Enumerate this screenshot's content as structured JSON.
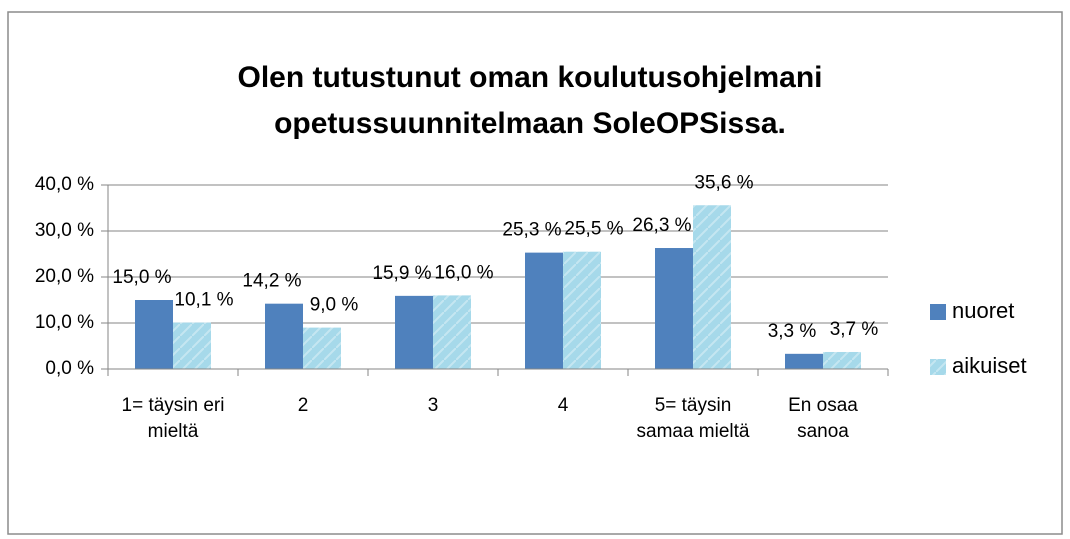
{
  "chart_data": {
    "type": "bar",
    "title": "Olen tutustunut oman koulutusohjelmani opetussuunnitelmaan SoleOPSissa.",
    "categories": [
      "1= täysin eri mieltä",
      "2",
      "3",
      "4",
      "5= täysin samaa mieltä",
      "En osaa sanoa"
    ],
    "series": [
      {
        "name": "nuoret",
        "color": "#4f81bd",
        "values": [
          15.0,
          14.2,
          15.9,
          25.3,
          26.3,
          3.3
        ],
        "value_labels": [
          "15,0 %",
          "14,2 %",
          "15,9 %",
          "25,3 %",
          "26,3 %",
          "3,3 %"
        ]
      },
      {
        "name": "aikuiset",
        "color": "#a6d9ea",
        "values": [
          10.1,
          9.0,
          16.0,
          25.5,
          35.6,
          3.7
        ],
        "value_labels": [
          "10,1 %",
          "9,0 %",
          "16,0 %",
          "25,5 %",
          "35,6 %",
          "3,7 %"
        ]
      }
    ],
    "ylim": [
      0,
      40
    ],
    "yticks": [
      {
        "value": 0,
        "label": "0,0 %"
      },
      {
        "value": 10,
        "label": "10,0 %"
      },
      {
        "value": 20,
        "label": "20,0 %"
      },
      {
        "value": 30,
        "label": "30,0 %"
      },
      {
        "value": 40,
        "label": "40,0 %"
      }
    ],
    "grid": true,
    "legend": "right"
  }
}
